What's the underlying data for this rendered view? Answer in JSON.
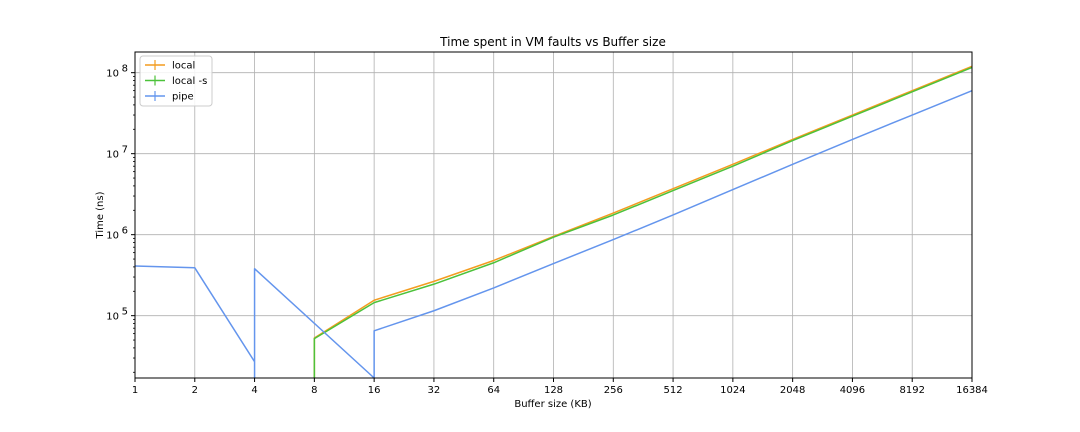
{
  "chart_data": {
    "type": "line",
    "title": "Time spent in VM faults vs Buffer size",
    "xlabel": "Buffer size (KB)",
    "ylabel": "Time (ns)",
    "x_scale": "log2",
    "y_scale": "log10",
    "x_ticks": [
      1,
      2,
      4,
      8,
      16,
      32,
      64,
      128,
      256,
      512,
      1024,
      2048,
      4096,
      8192,
      16384
    ],
    "x_tick_labels": [
      "1",
      "2",
      "4",
      "8",
      "16",
      "32",
      "64",
      "128",
      "256",
      "512",
      "1024",
      "2048",
      "4096",
      "8192",
      "16384"
    ],
    "y_ticks": [
      100000,
      1000000,
      10000000,
      100000000
    ],
    "y_tick_labels": [
      {
        "base": "10",
        "exp": "5"
      },
      {
        "base": "10",
        "exp": "6"
      },
      {
        "base": "10",
        "exp": "7"
      },
      {
        "base": "10",
        "exp": "8"
      }
    ],
    "xlim": [
      1,
      16384
    ],
    "ylim": [
      17000,
      180000000
    ],
    "grid": true,
    "legend_position": "top-left",
    "series": [
      {
        "name": "local",
        "color": "#f39c1f",
        "x": [
          8,
          8,
          16,
          32,
          64,
          128,
          256,
          512,
          1024,
          2048,
          4096,
          8192,
          16384
        ],
        "y": [
          17000,
          53000,
          155000,
          265000,
          480000,
          950000,
          1850000,
          3700000,
          7400000,
          15000000,
          30000000,
          60000000,
          120000000
        ]
      },
      {
        "name": "local -s",
        "color": "#4cc23a",
        "x": [
          8,
          8,
          16,
          32,
          64,
          128,
          256,
          512,
          1024,
          2048,
          4096,
          8192,
          16384
        ],
        "y": [
          17000,
          52000,
          145000,
          245000,
          450000,
          930000,
          1750000,
          3500000,
          7000000,
          14500000,
          29000000,
          58000000,
          116000000
        ]
      },
      {
        "name": "pipe",
        "color": "#6495ed",
        "x": [
          1,
          2,
          4,
          4,
          4,
          16,
          16,
          32,
          64,
          128,
          256,
          512,
          1024,
          2048,
          4096,
          8192,
          16384
        ],
        "y": [
          410000,
          390000,
          27000,
          17000,
          380000,
          17000,
          65000,
          115000,
          220000,
          440000,
          870000,
          1750000,
          3600000,
          7400000,
          15000000,
          30000000,
          60000000
        ]
      }
    ]
  }
}
